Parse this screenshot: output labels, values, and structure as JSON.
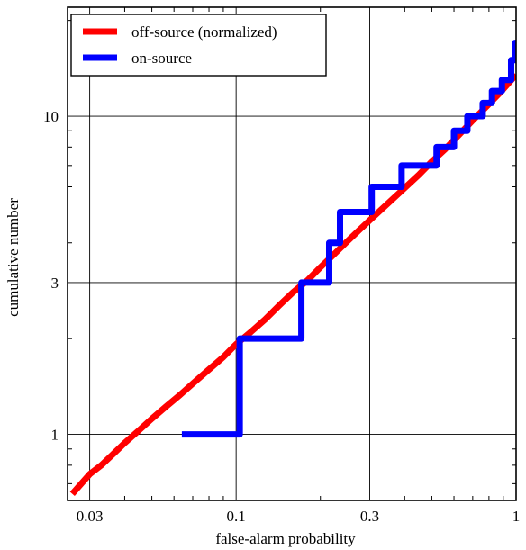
{
  "chart_data": {
    "type": "line",
    "title": "",
    "xlabel": "false-alarm probability",
    "ylabel": "cumulative number",
    "x_scale": "log",
    "y_scale": "log",
    "xlim": [
      0.025,
      1.0
    ],
    "ylim": [
      0.62,
      22
    ],
    "x_ticks": [
      0.03,
      0.1,
      0.3,
      1
    ],
    "x_tick_labels": [
      "0.03",
      "0.1",
      "0.3",
      "1"
    ],
    "y_ticks": [
      1,
      3,
      10
    ],
    "y_tick_labels": [
      "1",
      "3",
      "10"
    ],
    "grid": true,
    "legend_position": "top-left",
    "series": [
      {
        "name": "off-source (normalized)",
        "color": "#ff0000",
        "style": "smooth",
        "x": [
          0.026,
          0.028,
          0.03,
          0.033,
          0.036,
          0.04,
          0.045,
          0.05,
          0.056,
          0.063,
          0.071,
          0.08,
          0.09,
          0.1,
          0.113,
          0.127,
          0.143,
          0.16,
          0.18,
          0.2,
          0.225,
          0.25,
          0.28,
          0.315,
          0.355,
          0.4,
          0.45,
          0.5,
          0.56,
          0.63,
          0.7,
          0.79,
          0.88,
          1.0
        ],
        "y": [
          0.65,
          0.7,
          0.75,
          0.8,
          0.86,
          0.94,
          1.03,
          1.12,
          1.22,
          1.33,
          1.46,
          1.6,
          1.75,
          1.92,
          2.1,
          2.3,
          2.55,
          2.8,
          3.05,
          3.35,
          3.7,
          4.05,
          4.45,
          4.9,
          5.4,
          5.95,
          6.55,
          7.2,
          7.9,
          8.8,
          9.7,
          10.8,
          11.9,
          13.5
        ]
      },
      {
        "name": "on-source",
        "color": "#0000ff",
        "style": "step",
        "x": [
          0.064,
          0.103,
          0.171,
          0.215,
          0.235,
          0.305,
          0.39,
          0.52,
          0.6,
          0.67,
          0.76,
          0.82,
          0.89,
          0.96,
          0.99
        ],
        "y": [
          1,
          2,
          3,
          4,
          5,
          6,
          7,
          8,
          9,
          10,
          11,
          12,
          13,
          15,
          17
        ]
      }
    ]
  }
}
